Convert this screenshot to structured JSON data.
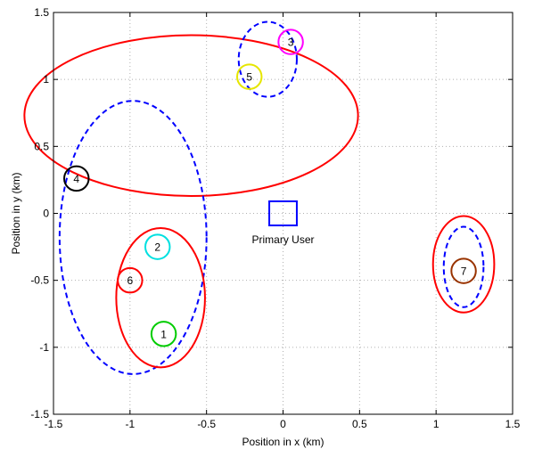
{
  "chart_data": {
    "type": "scatter",
    "title": "",
    "xlabel": "Position in x (km)",
    "ylabel": "Position in y (km)",
    "xlim": [
      -1.5,
      1.5
    ],
    "ylim": [
      -1.5,
      1.5
    ],
    "xticks": [
      "-1.5",
      "-1",
      "-0.5",
      "0",
      "0.5",
      "1",
      "1.5"
    ],
    "yticks": [
      "-1.5",
      "-1",
      "-0.5",
      "0",
      "0.5",
      "1",
      "1.5"
    ],
    "x_tick_values": [
      -1.5,
      -1,
      -0.5,
      0,
      0.5,
      1,
      1.5
    ],
    "y_tick_values": [
      -1.5,
      -1,
      -0.5,
      0,
      0.5,
      1,
      1.5
    ],
    "grid": true,
    "colors": {
      "solid_cluster": "#ff0000",
      "dashed_cluster": "#0000ff",
      "primary_user": "#0000ff"
    },
    "nodes": [
      {
        "label": "1",
        "x": -0.78,
        "y": -0.9,
        "color": "#00cc00"
      },
      {
        "label": "2",
        "x": -0.82,
        "y": -0.25,
        "color": "#00e0e0"
      },
      {
        "label": "3",
        "x": 0.05,
        "y": 1.28,
        "color": "#ff00ff"
      },
      {
        "label": "4",
        "x": -1.35,
        "y": 0.26,
        "color": "#000000"
      },
      {
        "label": "5",
        "x": -0.22,
        "y": 1.02,
        "color": "#e6e600"
      },
      {
        "label": "6",
        "x": -1.0,
        "y": -0.5,
        "color": "#ff0000"
      },
      {
        "label": "7",
        "x": 1.18,
        "y": -0.43,
        "color": "#993300"
      }
    ],
    "node_radius": 0.08,
    "primary_user": {
      "label": "Primary User",
      "x": 0.0,
      "y": 0.0,
      "half_size": 0.09
    },
    "clusters": [
      {
        "style": "solid",
        "cx": -0.6,
        "cy": 0.73,
        "rx": 1.09,
        "ry": 0.6
      },
      {
        "style": "dashed",
        "cx": -0.1,
        "cy": 1.15,
        "rx": 0.19,
        "ry": 0.28
      },
      {
        "style": "dashed",
        "cx": -0.98,
        "cy": -0.18,
        "rx": 0.48,
        "ry": 1.02
      },
      {
        "style": "solid",
        "cx": -0.8,
        "cy": -0.63,
        "rx": 0.29,
        "ry": 0.52
      },
      {
        "style": "solid",
        "cx": 1.18,
        "cy": -0.38,
        "rx": 0.2,
        "ry": 0.36
      },
      {
        "style": "dashed",
        "cx": 1.18,
        "cy": -0.4,
        "rx": 0.13,
        "ry": 0.3
      }
    ]
  }
}
